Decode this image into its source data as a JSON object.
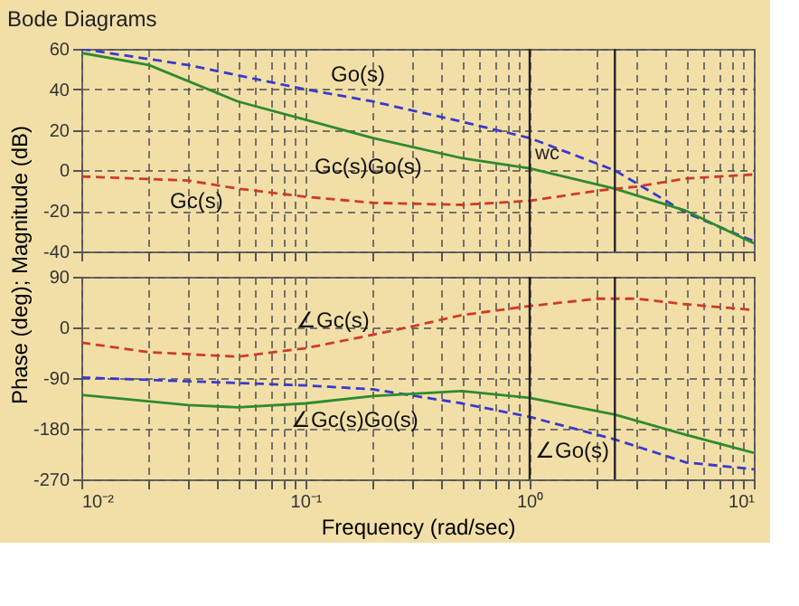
{
  "chart_data": [
    {
      "type": "line",
      "title": "Bode Diagrams",
      "ylabel": "Phase (deg); Magnitude (dB)",
      "log": "x",
      "grid": true,
      "marker": "none",
      "tick_labels": "y",
      "xlim": [
        0.01,
        10
      ],
      "xticks": [
        {
          "value": 0.01,
          "label": null
        },
        {
          "value": 0.02,
          "label": null
        },
        {
          "value": 0.03,
          "label": null
        },
        {
          "value": 0.04,
          "label": null
        },
        {
          "value": 0.05,
          "label": null
        },
        {
          "value": 0.06,
          "label": null
        },
        {
          "value": 0.07,
          "label": null
        },
        {
          "value": 0.08,
          "label": null
        },
        {
          "value": 0.09,
          "label": null
        },
        {
          "value": 0.1,
          "label": null
        },
        {
          "value": 0.2,
          "label": null
        },
        {
          "value": 0.3,
          "label": null
        },
        {
          "value": 0.4,
          "label": null
        },
        {
          "value": 0.5,
          "label": null
        },
        {
          "value": 0.6,
          "label": null
        },
        {
          "value": 0.7,
          "label": null
        },
        {
          "value": 0.8,
          "label": null
        },
        {
          "value": 0.9,
          "label": null
        },
        {
          "value": 1,
          "label": null
        },
        {
          "value": 2,
          "label": null
        },
        {
          "value": 3,
          "label": null
        },
        {
          "value": 4,
          "label": null
        },
        {
          "value": 5,
          "label": null
        },
        {
          "value": 6,
          "label": null
        },
        {
          "value": 7,
          "label": null
        },
        {
          "value": 8,
          "label": null
        },
        {
          "value": 9,
          "label": null
        },
        {
          "value": 10,
          "label": null
        }
      ],
      "ylim": [
        -40,
        60
      ],
      "yticks": [
        -40,
        -20,
        0,
        20,
        40,
        60
      ],
      "series": [
        {
          "color": "#3a3acc",
          "line_style": "dashed",
          "x": [
            0.01,
            0.03,
            0.1,
            0.2,
            0.5,
            1,
            2.4,
            5,
            10
          ],
          "values": [
            60,
            52,
            40,
            34,
            24,
            16,
            0,
            -21,
            -35
          ]
        },
        {
          "color": "#2e8b2e",
          "line_style": "solid",
          "x": [
            0.01,
            0.02,
            0.05,
            0.1,
            0.2,
            0.5,
            1,
            2.4,
            5,
            10
          ],
          "values": [
            58,
            52,
            34,
            25,
            16,
            6,
            1,
            -9,
            -20,
            -36
          ]
        },
        {
          "color": "#d03a2a",
          "line_style": "dashed",
          "x": [
            0.01,
            0.03,
            0.05,
            0.1,
            0.2,
            0.5,
            1,
            2,
            3,
            5,
            10
          ],
          "values": [
            -3,
            -5,
            -9,
            -13,
            -16,
            -17,
            -15,
            -10,
            -8,
            -4,
            -2
          ]
        }
      ],
      "ref_lines": [
        {
          "axis": "x",
          "value": 1,
          "label": "wc",
          "color": "#222222"
        },
        {
          "axis": "x",
          "value": 2.4,
          "color": "#222222"
        }
      ],
      "annotations": [
        "Go(s)",
        "Gc(s)Go(s)",
        "Gc(s)"
      ]
    },
    {
      "type": "line",
      "xlabel": "Frequency (rad/sec)",
      "log": "x",
      "grid": true,
      "marker": "none",
      "xlim": [
        0.01,
        10
      ],
      "xticks": [
        {
          "value": 0.01,
          "label": "10⁻²"
        },
        {
          "value": 0.02,
          "label": null
        },
        {
          "value": 0.03,
          "label": null
        },
        {
          "value": 0.04,
          "label": null
        },
        {
          "value": 0.05,
          "label": null
        },
        {
          "value": 0.06,
          "label": null
        },
        {
          "value": 0.07,
          "label": null
        },
        {
          "value": 0.08,
          "label": null
        },
        {
          "value": 0.09,
          "label": null
        },
        {
          "value": 0.1,
          "label": "10⁻¹"
        },
        {
          "value": 0.2,
          "label": null
        },
        {
          "value": 0.3,
          "label": null
        },
        {
          "value": 0.4,
          "label": null
        },
        {
          "value": 0.5,
          "label": null
        },
        {
          "value": 0.6,
          "label": null
        },
        {
          "value": 0.7,
          "label": null
        },
        {
          "value": 0.8,
          "label": null
        },
        {
          "value": 0.9,
          "label": null
        },
        {
          "value": 1,
          "label": "10⁰"
        },
        {
          "value": 2,
          "label": null
        },
        {
          "value": 3,
          "label": null
        },
        {
          "value": 4,
          "label": null
        },
        {
          "value": 5,
          "label": null
        },
        {
          "value": 6,
          "label": null
        },
        {
          "value": 7,
          "label": null
        },
        {
          "value": 8,
          "label": null
        },
        {
          "value": 9,
          "label": null
        },
        {
          "value": 10,
          "label": "10¹"
        }
      ],
      "ylim": [
        -270,
        90
      ],
      "yticks": [
        -270,
        -180,
        -90,
        0,
        90
      ],
      "series": [
        {
          "color": "#d03a2a",
          "line_style": "dashed",
          "x": [
            0.01,
            0.02,
            0.05,
            0.1,
            0.2,
            0.3,
            0.5,
            1,
            2,
            3,
            5,
            10
          ],
          "values": [
            -27,
            -44,
            -52,
            -37,
            -13,
            2,
            22,
            38,
            51,
            51,
            41,
            31
          ]
        },
        {
          "color": "#3a3acc",
          "line_style": "dashed",
          "x": [
            0.01,
            0.1,
            0.2,
            0.5,
            1,
            2.4,
            5,
            10
          ],
          "values": [
            -89,
            -103,
            -110,
            -135,
            -159,
            -199,
            -240,
            -252
          ]
        },
        {
          "color": "#2e8b2e",
          "line_style": "solid",
          "x": [
            0.01,
            0.03,
            0.05,
            0.1,
            0.2,
            0.5,
            1,
            2.4,
            5,
            10
          ],
          "values": [
            -120,
            -138,
            -142,
            -135,
            -122,
            -113,
            -125,
            -155,
            -191,
            -223
          ]
        }
      ],
      "ref_lines": [
        {
          "axis": "x",
          "value": 1,
          "color": "#222222"
        },
        {
          "axis": "x",
          "value": 2.4,
          "color": "#222222"
        }
      ],
      "annotations": [
        "∠Gc(s)",
        "∠Gc(s)Go(s)",
        "∠Go(s)"
      ]
    }
  ]
}
